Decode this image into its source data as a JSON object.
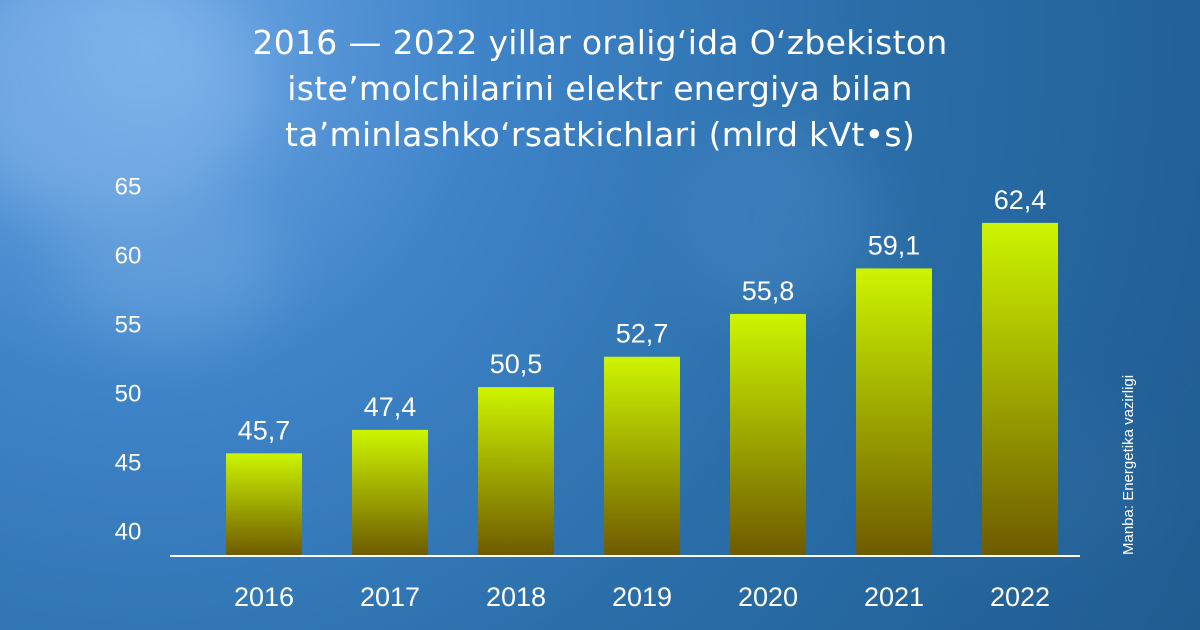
{
  "title_lines": [
    "2016 — 2022 yillar oralig‘ida O‘zbekiston",
    "iste’molchilarini elektr energiya bilan",
    "ta’minlashko‘rsatkichlari (mlrd kVt•s)"
  ],
  "source": "Manba: Energetika vazirligi",
  "colors": {
    "bar_top": "#cdf500",
    "bar_bottom": "#6e5a00",
    "axis": "#ffffff",
    "text": "#ffffff"
  },
  "chart_data": {
    "type": "bar",
    "title": "2016 — 2022 yillar oralig‘ida O‘zbekiston iste’molchilarini elektr energiya bilan ta’minlashko‘rsatkichlari (mlrd kVt•s)",
    "categories": [
      "2016",
      "2017",
      "2018",
      "2019",
      "2020",
      "2021",
      "2022"
    ],
    "values": [
      45.7,
      47.4,
      50.5,
      52.7,
      55.8,
      59.1,
      62.4
    ],
    "value_labels": [
      "45,7",
      "47,4",
      "50,5",
      "52,7",
      "55,8",
      "59,1",
      "62,4"
    ],
    "yticks": [
      "40",
      "45",
      "50",
      "55",
      "60",
      "65"
    ],
    "ylim": [
      40,
      65
    ],
    "xlabel": "",
    "ylabel": "",
    "grid": false,
    "legend": "none"
  }
}
